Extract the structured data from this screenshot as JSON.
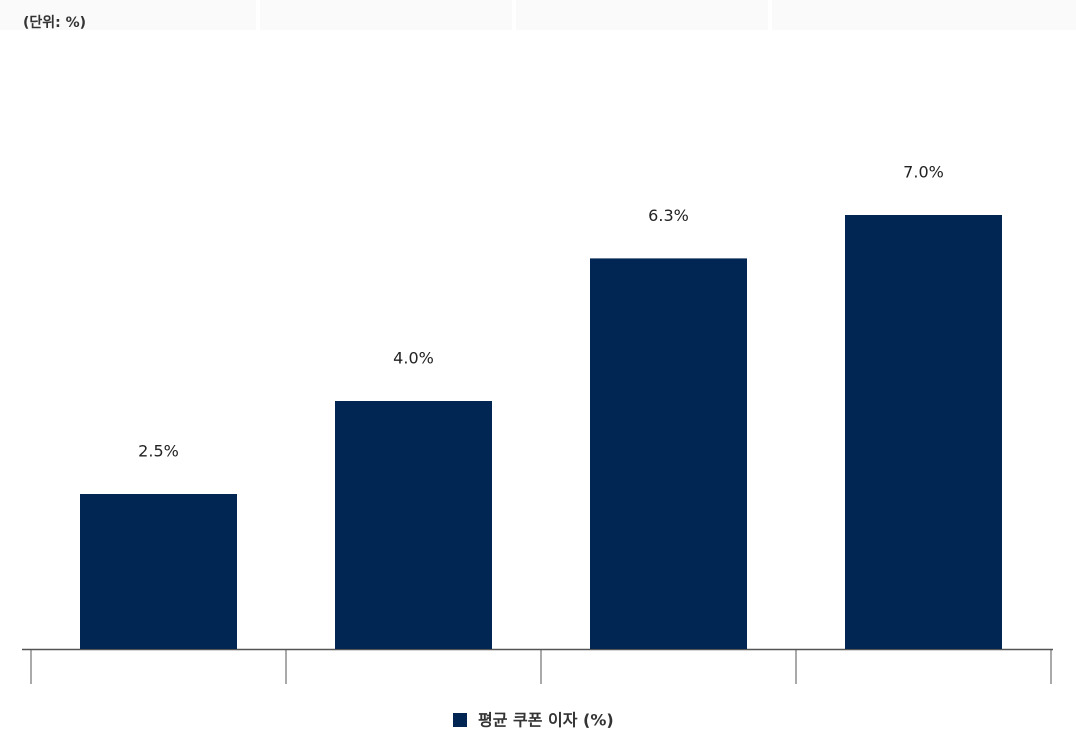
{
  "unit_label": "(단위: %)",
  "chart_data": {
    "type": "bar",
    "categories": [
      null,
      null,
      null,
      null
    ],
    "series": [
      {
        "name": "평균 쿠폰 이자 (%)",
        "color": "#022654",
        "values": [
          2.5,
          4.0,
          6.3,
          7.0
        ],
        "value_labels": [
          "2.5%",
          "4.0%",
          "6.3%",
          "7.0%"
        ]
      }
    ]
  }
}
